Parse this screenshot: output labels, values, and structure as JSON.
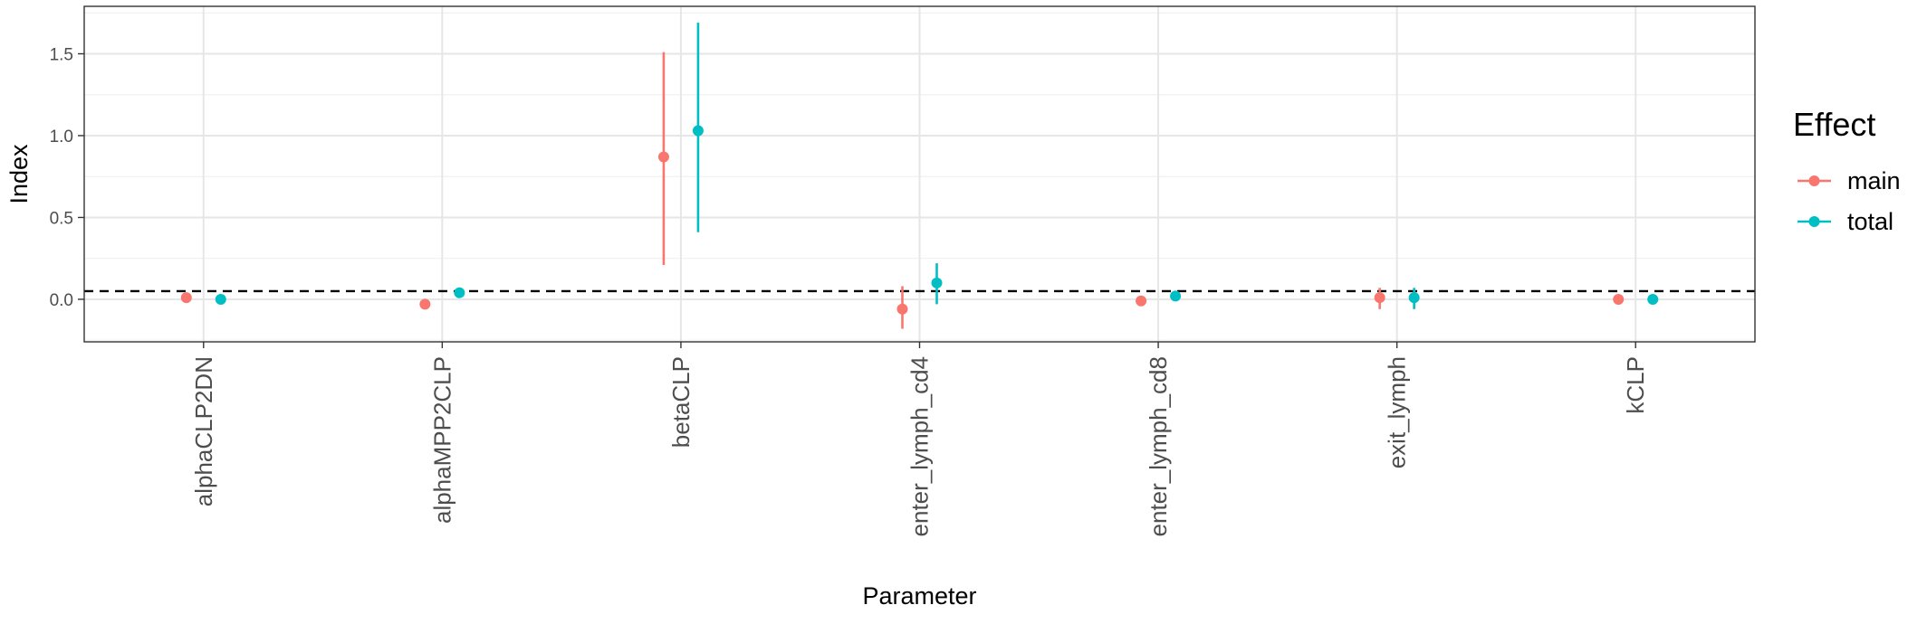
{
  "chart_data": {
    "type": "scatter",
    "subtype": "point-range",
    "title": "",
    "xlabel": "Parameter",
    "ylabel": "Index",
    "categories": [
      "alphaCLP2DN",
      "alphaMPP2CLP",
      "betaCLP",
      "enter_lymph_cd4",
      "enter_lymph_cd8",
      "exit_lymph",
      "kCLP"
    ],
    "ylim": [
      -0.26,
      1.79
    ],
    "yticks": [
      0.0,
      0.5,
      1.0,
      1.5
    ],
    "ytick_labels": [
      "0.0",
      "0.5",
      "1.0",
      "1.5"
    ],
    "reference_line": {
      "y": 0.05,
      "style": "dashed"
    },
    "grid": true,
    "legend": {
      "title": "Effect",
      "position": "right"
    },
    "series": [
      {
        "name": "main",
        "color": "#F8766D",
        "values": [
          0.01,
          -0.03,
          0.87,
          -0.06,
          -0.01,
          0.01,
          0.0
        ],
        "lower": [
          -0.01,
          -0.05,
          0.21,
          -0.18,
          -0.04,
          -0.06,
          -0.01
        ],
        "upper": [
          0.03,
          -0.01,
          1.51,
          0.08,
          0.02,
          0.07,
          0.01
        ]
      },
      {
        "name": "total",
        "color": "#00BFC4",
        "values": [
          0.0,
          0.04,
          1.03,
          0.1,
          0.02,
          0.01,
          0.0
        ],
        "lower": [
          -0.01,
          0.01,
          0.41,
          -0.03,
          -0.01,
          -0.06,
          -0.01
        ],
        "upper": [
          0.01,
          0.07,
          1.69,
          0.22,
          0.05,
          0.07,
          0.01
        ]
      }
    ]
  }
}
